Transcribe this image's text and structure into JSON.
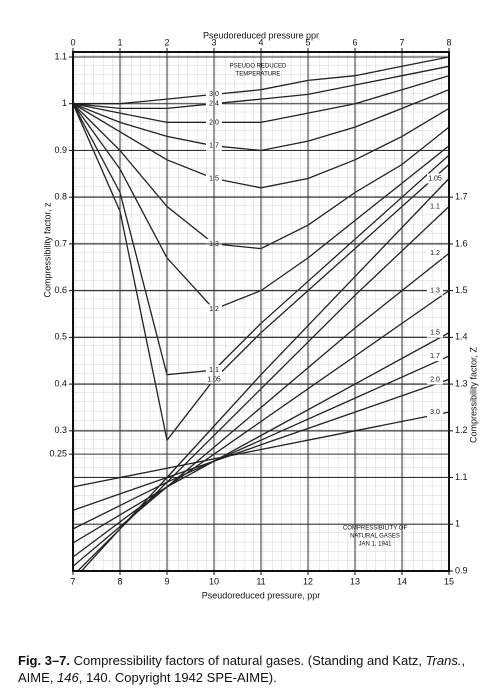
{
  "chart_data": [
    {
      "type": "line",
      "x_axis": "top",
      "y_axis": "left",
      "color": "#222",
      "xlabel": "Pseudoreduced pressure ppr",
      "ylabel": "Compressibility factor, z",
      "annotations": [
        "PSEUDO REDUCED",
        "TEMPERATURE"
      ],
      "x": [
        0,
        1,
        2,
        3,
        4,
        5,
        6,
        7,
        8
      ],
      "xlim": [
        0,
        8
      ],
      "xticks": [
        0,
        1,
        2,
        3,
        4,
        5,
        6,
        7,
        8
      ],
      "ylim": [
        0,
        1.1
      ],
      "yticks": [
        0.25,
        0.3,
        0.4,
        0.5,
        0.6,
        0.7,
        0.8,
        0.9,
        1.0,
        1.1
      ],
      "series": [
        {
          "name": "1.05",
          "values": [
            1.0,
            0.77,
            0.28,
            0.41,
            0.51,
            0.6,
            0.69,
            0.78,
            0.87
          ]
        },
        {
          "name": "1.1",
          "values": [
            1.0,
            0.81,
            0.42,
            0.43,
            0.53,
            0.62,
            0.71,
            0.8,
            0.89
          ]
        },
        {
          "name": "1.2",
          "values": [
            1.0,
            0.86,
            0.67,
            0.56,
            0.6,
            0.67,
            0.75,
            0.83,
            0.91
          ]
        },
        {
          "name": "1.3",
          "values": [
            1.0,
            0.9,
            0.78,
            0.7,
            0.69,
            0.74,
            0.81,
            0.87,
            0.95
          ]
        },
        {
          "name": "1.5",
          "values": [
            1.0,
            0.94,
            0.88,
            0.84,
            0.82,
            0.84,
            0.88,
            0.93,
            0.99
          ]
        },
        {
          "name": "1.7",
          "values": [
            1.0,
            0.96,
            0.93,
            0.91,
            0.9,
            0.92,
            0.95,
            0.99,
            1.03
          ]
        },
        {
          "name": "2.0",
          "values": [
            1.0,
            0.98,
            0.96,
            0.96,
            0.96,
            0.98,
            1.0,
            1.03,
            1.06
          ]
        },
        {
          "name": "2.4",
          "values": [
            1.0,
            0.99,
            0.99,
            1.0,
            1.01,
            1.02,
            1.04,
            1.06,
            1.08
          ]
        },
        {
          "name": "3.0",
          "values": [
            1.0,
            1.0,
            1.01,
            1.02,
            1.03,
            1.05,
            1.06,
            1.08,
            1.1
          ]
        }
      ]
    },
    {
      "type": "line",
      "x_axis": "bottom",
      "y_axis": "right",
      "color": "#222",
      "xlabel": "Pseudoreduced pressure, ppr",
      "ylabel": "Compressibility factor, Z",
      "annotations": [
        "COMPRESSIBILITY OF",
        "NATURAL GASES",
        "JAN 1, 1941"
      ],
      "x": [
        7,
        9,
        11,
        13,
        15
      ],
      "xlim": [
        7,
        15
      ],
      "xticks": [
        7,
        8,
        9,
        10,
        11,
        12,
        13,
        14,
        15
      ],
      "ylim": [
        0.9,
        2.0
      ],
      "yticks": [
        0.9,
        1.0,
        1.1,
        1.2,
        1.3,
        1.4,
        1.5,
        1.6,
        1.7
      ],
      "series": [
        {
          "name": "1.05",
          "values": [
            0.88,
            1.1,
            1.32,
            1.53,
            1.74
          ]
        },
        {
          "name": "1.1",
          "values": [
            0.89,
            1.09,
            1.29,
            1.49,
            1.68
          ]
        },
        {
          "name": "1.2",
          "values": [
            0.91,
            1.08,
            1.25,
            1.42,
            1.58
          ]
        },
        {
          "name": "1.3",
          "values": [
            0.93,
            1.08,
            1.22,
            1.36,
            1.5
          ]
        },
        {
          "name": "1.5",
          "values": [
            0.96,
            1.08,
            1.19,
            1.3,
            1.41
          ]
        },
        {
          "name": "1.7",
          "values": [
            0.99,
            1.09,
            1.18,
            1.27,
            1.36
          ]
        },
        {
          "name": "2.0",
          "values": [
            1.03,
            1.1,
            1.17,
            1.24,
            1.31
          ]
        },
        {
          "name": "3.0",
          "values": [
            1.08,
            1.12,
            1.16,
            1.2,
            1.24
          ]
        }
      ]
    }
  ],
  "caption": {
    "figure": "Fig. 3–7.",
    "text": "Compressibility factors of natural gases. (Standing and Katz,",
    "journal": "Trans.",
    "society": ", AIME,",
    "volume": "146",
    "rest": ", 140. Copyright 1942 SPE-AIME)."
  }
}
